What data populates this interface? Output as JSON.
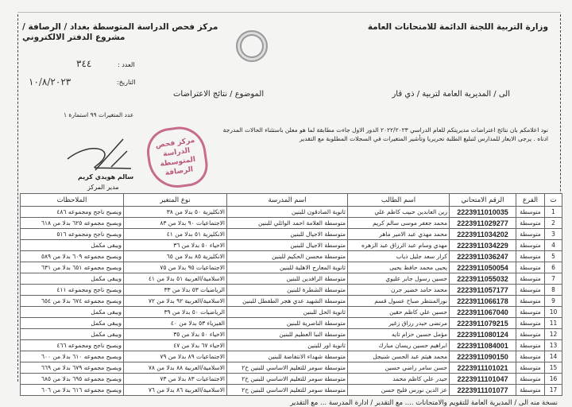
{
  "header": {
    "ministry": "وزارة التربية اللجنة الدائمة للامتحانات العامة",
    "center": "مركز فحص الدراسة المتوسطة بغداد / الرصافة / مشروع الدفتر الالكتروني",
    "number_label": "العدد :",
    "number_value": "٣٤٤",
    "date_label": "التاريخ:",
    "date_value": "١٠/٨/٢٠٢٣",
    "to": "الى / المديرية العامة لتربية / ذي قار",
    "subject": "الموضوع / نتائج الاعتراضات",
    "changes_count": "عدد المتغيرات ٩٩   استمارة ١"
  },
  "body": {
    "line1": "نود اعلامكم بان نتائج اعتراضات مديريتكم للعام الدراسي ٢٠٢٢/٢٠٢٣ الدور الاول جاءت مطابقة لما هو معلن باستثناء الحالات المدرجة",
    "line2": "ادناه . يرجى الايعاز للمدارس لتبليغ الطلبة تحريريا وتأشير المتغيرات في السجلات المطلوبة مع التقدير"
  },
  "signature": {
    "name": "سالم هويدي كريم",
    "title": "مدير المركز"
  },
  "stamp": {
    "text": "مركز فحص الدراسة المتوسطة الرصافة"
  },
  "table": {
    "columns": [
      "ت",
      "الفرع",
      "الرقم الامتحاني",
      "اسم الطالب",
      "اسم المدرسة",
      "نوع المتغير",
      "الملاحظات"
    ],
    "rows": [
      [
        "1",
        "متوسطة",
        "2223911010035",
        "زين العابدين حبيب كاظم علي",
        "ثانوية الصادقون للبنين",
        "الانكليزية ٥٠ بدلا من ٣٨",
        "ويصبح ناجح ومجموعه ٤٨٦"
      ],
      [
        "2",
        "متوسطة",
        "2223911029277",
        "محمد جعفر موسى سالم كريم",
        "متوسطة العلامة احمد الوائلي للبنين",
        "الاجتماعيات ٩٠ بدلا من ٨٣",
        "ويصبح مجموعه ٦٢٥ بدلا من ٦١٨"
      ],
      [
        "3",
        "متوسطة",
        "2223911034202",
        "محمد مهدي عبد الامير ماهر",
        "متوسطة الاجيال للبنين",
        "الانكليزية ٥١ بدلا من ٤١",
        "ويصبح ناجح ومجموعه ٥١٦"
      ],
      [
        "4",
        "متوسطة",
        "2223911034229",
        "مهدي وسام عبد الرزاق عبد الزهره",
        "متوسطة الاجيال للبنين",
        "الاحياء ٥٠ بدلا من ٣٦",
        "ويبقى مكمل"
      ],
      [
        "5",
        "متوسطة",
        "2223911036247",
        "كرار سعد جليل ذياب",
        "متوسطة محسن الحكيم للبنين",
        "الانكليزية ٨٥ بدلا من ٦٥",
        "ويصبح مجموعه ٦٠٩ بدلا من ٥٨٩"
      ],
      [
        "6",
        "متوسطة",
        "2223911050054",
        "يحيى محمد حافظ يحيى",
        "ثانوية المعارج الاهلية للبنين",
        "الاجتماعيات ٩٥ بدلا من ٧٥",
        "ويصبح مجموعه ٦٥١ بدلا من ٦٣١"
      ],
      [
        "7",
        "متوسطة",
        "2223911055032",
        "حسين رسول جابر عليوي",
        "متوسطة الرافدين للبنين",
        "الاسلامية/العربية ٥١ بدلا من ٤١",
        "ويبقى مكمل"
      ],
      [
        "8",
        "متوسطة",
        "2223911057177",
        "محمد حامد خضير جرن",
        "متوسطة الشطرة للبنين",
        "الرياضيات ٥٣ بدلا من ٣٣",
        "ويصبح ناجح ومجموعه ٤١١"
      ],
      [
        "9",
        "متوسطة",
        "2223911066178",
        "نورالمنتظر صباح عسول قسم",
        "متوسطة الشهيد عدي هجر الطفطل للبنين",
        "الاسلامية/العربية ٩٢ بدلا من ٧٢",
        "ويصبح مجموعه ٦٧٤ بدلا من ٦٥٤"
      ],
      [
        "10",
        "متوسطة",
        "2223911067040",
        "حسين علي كاظم حقين",
        "ثانوية الحل للبنين",
        "الرياضيات ٥٠ بدلا من ٣٩",
        "ويبقى مكمل"
      ],
      [
        "11",
        "متوسطة",
        "2223911079215",
        "مرتضى حيدر رزاق زغير",
        "متوسطة الناصرية للبنين",
        "الفيزياء ٥٣ بدلا من ٤٠",
        "ويبقى مكمل"
      ],
      [
        "12",
        "متوسطة",
        "2223911080124",
        "مؤمل حسين حزام تايه",
        "متوسطة النبا العظيم للبنين",
        "الاحياء ٥٠ بدلا من ٣٥",
        "ويبقى مكمل"
      ],
      [
        "13",
        "متوسطة",
        "2223911084001",
        "ابراهيم حسين ريسان مبارك",
        "ثانوية اور للبنين",
        "الاحياء ٦٧ بدلا من ٤٧",
        "ويصبح ناجح ومجموعه ٤٦٦"
      ],
      [
        "14",
        "متوسطة",
        "2223911090150",
        "محمد هيثم عبد الحسن شنيجل",
        "متوسطة شهداء الانتفاضة للبنين",
        "الاجتماعيات ٨٩ بدلا من ٧٩",
        "ويصبح مجموعه ٦١٠ بدلا من ٦٠٠"
      ],
      [
        "15",
        "متوسطة",
        "2223911101021",
        "حسن سامر راضي حسين",
        "متوسطة سومر للتعليم الاساسي للبنين ح٢",
        "الاسلامية/العربية ٨٨ بدلا من ٧٨",
        "ويصبح مجموعه ٦٧٩ بدلا من ٦٦٩"
      ],
      [
        "16",
        "متوسطة",
        "2223911101047",
        "حيدر علي كاظم محمد",
        "متوسطة سومر للتعليم الاساسي للبنين ح٢",
        "الاجتماعيات ٨٣ بدلا من ٧٣",
        "ويصبح مجموعه ٦٩٥ بدلا من ٦٨٥"
      ],
      [
        "17",
        "متوسطة",
        "2223911101077",
        "عز الدين نورس فليح حسن",
        "متوسطة سومر للتعليم الاساسي للبنين ح٢",
        "الاسلامية/العربية ٨٦ بدلا من ٧٦",
        "ويصبح مجموعه ٦١٦ بدلا من ٦٠٦"
      ]
    ]
  },
  "footer": {
    "copy": "نسخة منه الى / المديرية العامة للتقويم والامتحانات .... مع التقدير / ادارة المدرسة ... مع التقدير"
  },
  "colors": {
    "stamp": "#b03a66",
    "ink": "#222222",
    "paper": "#f4f4f2"
  }
}
